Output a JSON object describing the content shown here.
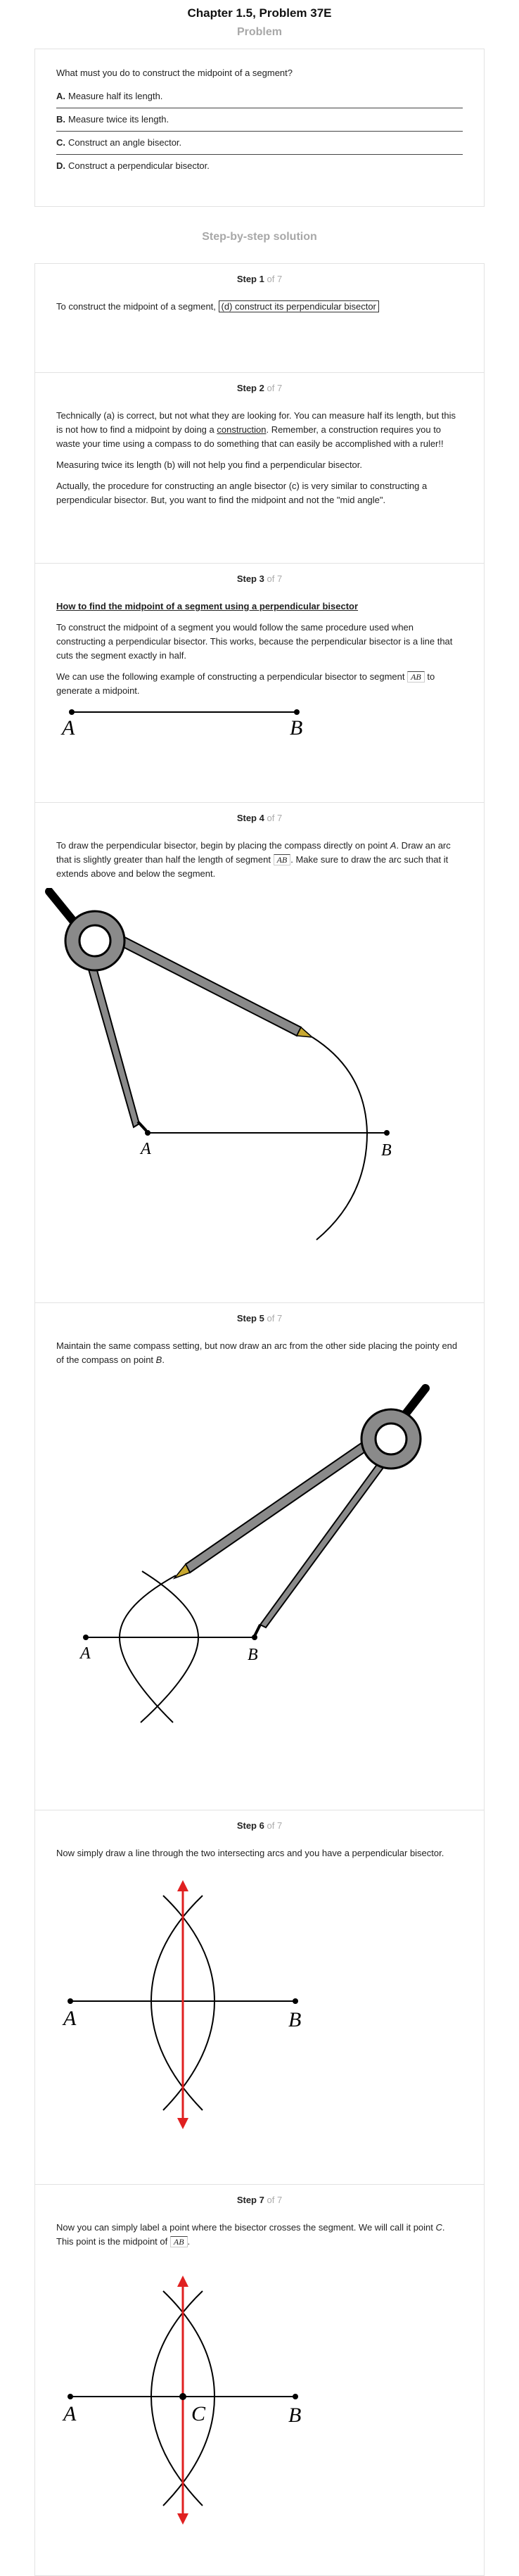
{
  "header": {
    "title": "Chapter 1.5, Problem 37E"
  },
  "problem": {
    "heading": "Problem",
    "question": "What must you do to construct the midpoint of a segment?",
    "options": [
      {
        "letter": "A.",
        "text": "Measure half its length."
      },
      {
        "letter": "B.",
        "text": "Measure twice its length."
      },
      {
        "letter": "C.",
        "text": "Construct an angle bisector."
      },
      {
        "letter": "D.",
        "text": "Construct a perpendicular bisector."
      }
    ]
  },
  "solution": {
    "heading": "Step-by-step solution",
    "step_word": "Step",
    "of_total": "of 7",
    "steps": [
      {
        "number": "1",
        "text_before": "To construct the midpoint of a segment, ",
        "answer": "(d) construct its perpendicular bisector"
      },
      {
        "number": "2",
        "p1_before": "Technically (a) is correct, but not what they are looking for. You can measure half its length, but this is not how to find a midpoint by doing a ",
        "p1_link": "construction",
        "p1_after": ". Remember, a construction requires you to waste your time using a compass to do something that can easily be accomplished with a ruler!!",
        "p2": "Measuring twice its length (b) will not help you find a perpendicular bisector.",
        "p3": "Actually, the procedure for constructing an angle bisector (c) is very similar to constructing a perpendicular bisector. But, you want to find the midpoint and not the \"mid angle\"."
      },
      {
        "number": "3",
        "subhead": "How to find the midpoint of a segment using a perpendicular bisector",
        "p1": "To construct the midpoint of a segment you would follow the same procedure used when constructing a perpendicular bisector. This works, because the perpendicular bisector is a line that cuts the segment exactly in half.",
        "p2_before": "We can use the following example of constructing a perpendicular bisector to segment ",
        "p2_seg": "AB",
        "p2_after": " to generate a midpoint.",
        "label_a": "A",
        "label_b": "B"
      },
      {
        "number": "4",
        "p_before": "To draw the perpendicular bisector, begin by placing the compass directly on point ",
        "p_pt": "A",
        "p_mid": ". Draw an arc that is slightly greater than half the length of segment ",
        "p_seg": "AB",
        "p_after": ". Make sure to draw the arc such that it extends above and below the segment.",
        "label_a": "A",
        "label_b": "B"
      },
      {
        "number": "5",
        "p_before": "Maintain the same compass setting, but now draw an arc from the other side placing the pointy end of the compass on point ",
        "p_pt": "B",
        "p_after": ".",
        "label_a": "A",
        "label_b": "B"
      },
      {
        "number": "6",
        "p": "Now simply draw a line through the two intersecting arcs and you have a perpendicular bisector.",
        "label_a": "A",
        "label_b": "B"
      },
      {
        "number": "7",
        "p_before": "Now you can simply label a point where the bisector crosses the segment. We will call it point ",
        "p_pt": "C",
        "p_mid": ". This point is the midpoint of ",
        "p_seg": "AB",
        "p_after": ".",
        "label_a": "A",
        "label_b": "B",
        "label_c": "C"
      }
    ]
  }
}
